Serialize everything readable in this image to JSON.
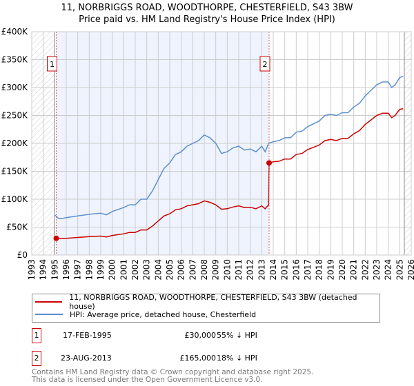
{
  "title": "11, NORBRIGGS ROAD, WOODTHORPE, CHESTERFIELD, S43 3BW",
  "subtitle": "Price paid vs. HM Land Registry's House Price Index (HPI)",
  "colors": {
    "property": "#cc0000",
    "hpi": "#5b8fd0",
    "shade": "#eef3fd"
  },
  "chart_data": {
    "type": "line",
    "title": "11, NORBRIGGS ROAD, WOODTHORPE, CHESTERFIELD, S43 3BW",
    "xlim": [
      1993,
      2026
    ],
    "ylim": [
      0,
      400000
    ],
    "grid": true,
    "yticks": [
      0,
      50000,
      100000,
      150000,
      200000,
      250000,
      300000,
      350000,
      400000
    ],
    "ytick_labels": [
      "£0",
      "£50K",
      "£100K",
      "£150K",
      "£200K",
      "£250K",
      "£300K",
      "£350K",
      "£400K"
    ],
    "xticks": [
      1993,
      1994,
      1995,
      1996,
      1997,
      1998,
      1999,
      2000,
      2001,
      2002,
      2003,
      2004,
      2005,
      2006,
      2007,
      2008,
      2009,
      2010,
      2011,
      2012,
      2013,
      2014,
      2015,
      2016,
      2017,
      2018,
      2019,
      2020,
      2021,
      2022,
      2023,
      2024,
      2025,
      2026
    ],
    "xtick_labels": [
      "1993",
      "1994",
      "1995",
      "1996",
      "1997",
      "1998",
      "1999",
      "2000",
      "2001",
      "2002",
      "2003",
      "2004",
      "2005",
      "2006",
      "2007",
      "2008",
      "2009",
      "2010",
      "2011",
      "2012",
      "2013",
      "2014",
      "2015",
      "2016",
      "2017",
      "2018",
      "2019",
      "2020",
      "2021",
      "2022",
      "2023",
      "2024",
      "2025",
      "2026"
    ],
    "data_start": 1995.0,
    "data_end": 2025.4,
    "series": [
      {
        "name": "11, NORBRIGGS ROAD, WOODTHORPE, CHESTERFIELD, S43 3BW (detached house)",
        "x": [
          1995.13,
          1995.5,
          1996,
          1997,
          1998,
          1999,
          1999.5,
          2000,
          2001,
          2001.5,
          2002,
          2002.5,
          2003,
          2003.5,
          2004,
          2004.5,
          2005,
          2005.5,
          2006,
          2006.5,
          2007,
          2007.5,
          2008,
          2008.5,
          2009,
          2009.5,
          2010,
          2010.5,
          2011,
          2011.5,
          2012,
          2012.5,
          2013,
          2013.3,
          2013.6,
          2013.64,
          2014,
          2014.5,
          2015,
          2015.5,
          2016,
          2016.5,
          2017,
          2017.5,
          2018,
          2018.5,
          2019,
          2019.5,
          2020,
          2020.5,
          2021,
          2021.5,
          2022,
          2022.5,
          2023,
          2023.5,
          2024,
          2024.3,
          2024.6,
          2025,
          2025.3
        ],
        "y": [
          30000,
          29500,
          30000,
          31500,
          33000,
          34000,
          32500,
          35000,
          38000,
          40500,
          40500,
          45000,
          45000,
          52000,
          61000,
          70000,
          74000,
          81000,
          83000,
          88000,
          90000,
          92000,
          97000,
          94500,
          90000,
          82000,
          83000,
          86000,
          88000,
          85000,
          85500,
          83000,
          88000,
          83000,
          90000,
          165000,
          167000,
          168000,
          172000,
          172000,
          180000,
          182000,
          189000,
          193000,
          197000,
          205000,
          207000,
          205000,
          209000,
          209000,
          217000,
          223000,
          234000,
          242000,
          250000,
          254000,
          254000,
          246000,
          250000,
          261000,
          262000
        ]
      },
      {
        "name": "HPI: Average price, detached house, Chesterfield",
        "x": [
          1995.0,
          1995.3,
          1995.5,
          1996,
          1997,
          1998,
          1999,
          1999.5,
          2000,
          2001,
          2001.5,
          2002,
          2002.5,
          2003,
          2003.5,
          2004,
          2004.5,
          2005,
          2005.5,
          2006,
          2006.5,
          2007,
          2007.5,
          2008,
          2008.5,
          2009,
          2009.5,
          2010,
          2010.5,
          2011,
          2011.5,
          2012,
          2012.5,
          2013,
          2013.3,
          2013.6,
          2014,
          2014.5,
          2015,
          2015.5,
          2016,
          2016.5,
          2017,
          2017.5,
          2018,
          2018.5,
          2019,
          2019.5,
          2020,
          2020.5,
          2021,
          2021.5,
          2022,
          2022.5,
          2023,
          2023.5,
          2024,
          2024.3,
          2024.6,
          2025,
          2025.3
        ],
        "y": [
          72000,
          66000,
          65000,
          67000,
          70000,
          73000,
          75000,
          72000,
          78000,
          85000,
          90000,
          90000,
          100000,
          100000,
          115000,
          135000,
          155000,
          165000,
          180000,
          185000,
          195000,
          200000,
          205000,
          215000,
          210000,
          200000,
          182000,
          185000,
          192000,
          195000,
          188000,
          190000,
          185000,
          195000,
          185000,
          200000,
          203000,
          205000,
          210000,
          210000,
          220000,
          222000,
          230000,
          235000,
          240000,
          250000,
          252000,
          250000,
          255000,
          255000,
          265000,
          272000,
          285000,
          295000,
          305000,
          310000,
          310000,
          300000,
          305000,
          318000,
          320000
        ]
      }
    ],
    "sales": [
      {
        "label": "1",
        "x": 1995.13,
        "y": 30000
      },
      {
        "label": "2",
        "x": 2013.64,
        "y": 165000
      }
    ]
  },
  "legend": {
    "property": "11, NORBRIGGS ROAD, WOODTHORPE, CHESTERFIELD, S43 3BW (detached house)",
    "hpi": "HPI: Average price, detached house, Chesterfield"
  },
  "transactions": [
    {
      "num": "1",
      "date": "17-FEB-1995",
      "price": "£30,000",
      "hpi": "55% ↓ HPI"
    },
    {
      "num": "2",
      "date": "23-AUG-2013",
      "price": "£165,000",
      "hpi": "18% ↓ HPI"
    }
  ],
  "footer": {
    "line1": "Contains HM Land Registry data © Crown copyright and database right 2025.",
    "line2": "This data is licensed under the Open Government Licence v3.0."
  }
}
